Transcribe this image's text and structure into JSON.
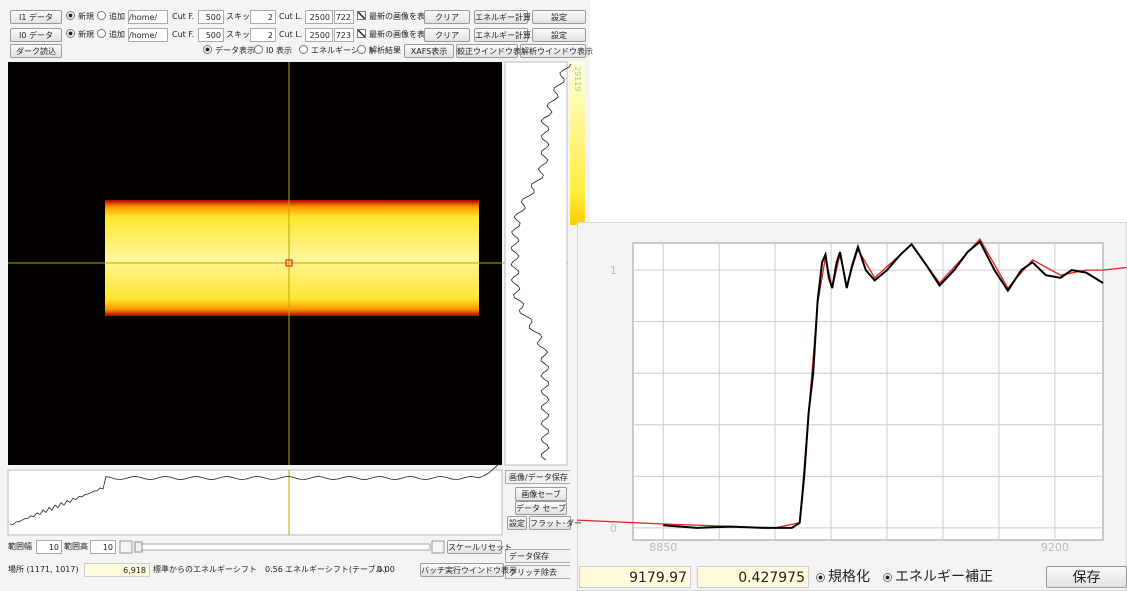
{
  "toolbar": {
    "rows": [
      {
        "button": "I1 データ",
        "new": "新規",
        "add": "追加",
        "path": "/home/",
        "cut_first_label": "Cut F.",
        "cut_first": 500,
        "skip_label": "スキップ",
        "skip": 2,
        "cut_last_label": "Cut L.",
        "cut_last": 2500,
        "count": 722,
        "show_latest": "最新の画像を表示",
        "clear": "クリア",
        "energy_calc": "エネルギー計算",
        "settings": "設定"
      },
      {
        "button": "I0 データ",
        "new": "新規",
        "add": "追加",
        "path": "/home/",
        "cut_first_label": "Cut F.",
        "cut_first": 500,
        "skip_label": "スキップ",
        "skip": 2,
        "cut_last_label": "Cut L.",
        "cut_last": 2500,
        "count": 723,
        "show_latest": "最新の画像を表示",
        "clear": "クリア",
        "energy_calc": "エネルギー計算",
        "settings": "設定"
      }
    ],
    "dark": "ダーク読込",
    "view_options": [
      "データ表示",
      "I0 表示",
      "エネルギーシフト",
      "解析結果"
    ],
    "xafs": "XAFS表示",
    "calib": "較正ウインドウ表示",
    "analysis": "解析ウインドウ表示"
  },
  "colorbar_max": 29119,
  "side": {
    "image_tab": "画像/データ保存",
    "save_image": "画像セーブ",
    "save_data": "データ セーブ",
    "settings": "設定",
    "flat": "フラット･ダー",
    "data_tab": "データ保存",
    "glitch_tab": "グリッチ除去"
  },
  "bottom": {
    "width_label": "範囲幅",
    "width": 10,
    "height_label": "範囲高",
    "height": 10,
    "scale_reset": "スケールリセット",
    "location": "場所 (1171, 1017)",
    "pixel": "6,918",
    "shift_label": "標準からのエネルギーシフト",
    "shift": 0.56,
    "table_shift_label": "エネルギーシフト(テーブル)",
    "table_shift": "0.00",
    "batch": "バッチ実行ウインドウ表示"
  },
  "xafs_window": {
    "energy": 9179.97,
    "value": 0.427975,
    "normalize": "規格化",
    "energy_correction": "エネルギー補正",
    "save": "保存",
    "chart": {
      "type": "line",
      "xlim": [
        8823,
        9243
      ],
      "ylim": [
        -0.047,
        1.105
      ],
      "xticks": [
        8850,
        9200
      ],
      "yticks": [
        0,
        1
      ],
      "xgrid": [
        8850,
        8900,
        8950,
        9000,
        9050,
        9100,
        9150,
        9200
      ],
      "ygrid": [
        0,
        0.2,
        0.4,
        0.6,
        0.8,
        1
      ],
      "series": [
        {
          "color": "#e02020",
          "x": [
            8773,
            8850,
            8950,
            8972,
            8980,
            8988,
            8995,
            9001,
            9008,
            9014,
            9024,
            9039,
            9072,
            9097,
            9133,
            9158,
            9180,
            9205,
            9228,
            9243,
            9264
          ],
          "values": [
            0.03,
            0.015,
            0.0,
            0.02,
            0.45,
            0.87,
            1.05,
            0.93,
            1.06,
            0.94,
            1.08,
            0.97,
            1.1,
            0.95,
            1.12,
            0.93,
            1.04,
            0.98,
            1.0,
            1.0,
            1.01
          ]
        },
        {
          "color": "#000000",
          "x": [
            8850,
            8880,
            8910,
            8940,
            8965,
            8972,
            8976,
            8980,
            8984,
            8988,
            8992,
            8995,
            8998,
            9001,
            9005,
            9008,
            9011,
            9014,
            9019,
            9024,
            9031,
            9039,
            9050,
            9062,
            9072,
            9085,
            9097,
            9110,
            9122,
            9133,
            9146,
            9158,
            9170,
            9180,
            9192,
            9205,
            9215,
            9228,
            9243
          ],
          "values": [
            0.01,
            0.0,
            0.005,
            0.0,
            0.0,
            0.02,
            0.2,
            0.45,
            0.6,
            0.88,
            1.03,
            1.06,
            0.97,
            0.93,
            1.03,
            1.07,
            1.0,
            0.93,
            1.02,
            1.09,
            1.0,
            0.96,
            1.0,
            1.06,
            1.1,
            1.02,
            0.94,
            1.0,
            1.07,
            1.11,
            1.0,
            0.92,
            1.0,
            1.03,
            0.98,
            0.97,
            1.0,
            0.99,
            0.95
          ]
        }
      ]
    }
  }
}
